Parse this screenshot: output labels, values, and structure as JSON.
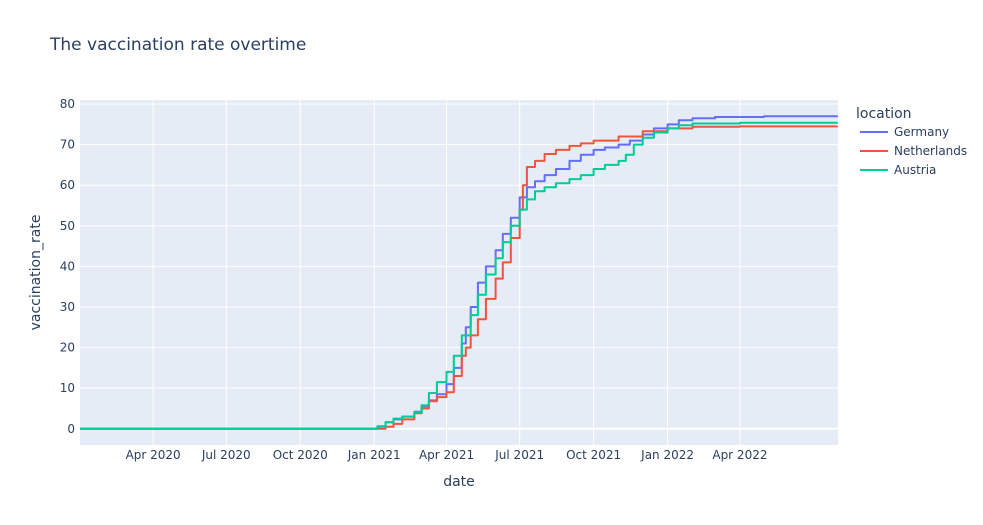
{
  "chart_data": {
    "type": "line",
    "title": "The vaccination rate overtime",
    "xlabel": "date",
    "ylabel": "vaccination_rate",
    "xlim": [
      "2020-01-01",
      "2022-08-01"
    ],
    "ylim": [
      -4,
      81
    ],
    "x_ticks": [
      {
        "date": "2020-04-01",
        "label": "Apr 2020"
      },
      {
        "date": "2020-07-01",
        "label": "Jul 2020"
      },
      {
        "date": "2020-10-01",
        "label": "Oct 2020"
      },
      {
        "date": "2021-01-01",
        "label": "Jan 2021"
      },
      {
        "date": "2021-04-01",
        "label": "Apr 2021"
      },
      {
        "date": "2021-07-01",
        "label": "Jul 2021"
      },
      {
        "date": "2021-10-01",
        "label": "Oct 2021"
      },
      {
        "date": "2022-01-01",
        "label": "Jan 2022"
      },
      {
        "date": "2022-04-01",
        "label": "Apr 2022"
      }
    ],
    "y_ticks": [
      0,
      10,
      20,
      30,
      40,
      50,
      60,
      70,
      80
    ],
    "grid": true,
    "legend": {
      "title": "location",
      "placement": "right"
    },
    "plot_bg": "#e5ecf6",
    "series": [
      {
        "name": "Germany",
        "color": "#636efa",
        "points": [
          [
            "2020-01-01",
            0
          ],
          [
            "2020-12-27",
            0
          ],
          [
            "2021-01-05",
            0.6
          ],
          [
            "2021-01-15",
            1.6
          ],
          [
            "2021-01-25",
            2.3
          ],
          [
            "2021-02-05",
            3.0
          ],
          [
            "2021-02-20",
            4.2
          ],
          [
            "2021-03-01",
            5.5
          ],
          [
            "2021-03-10",
            7.0
          ],
          [
            "2021-03-20",
            8.5
          ],
          [
            "2021-04-01",
            11.0
          ],
          [
            "2021-04-10",
            15.0
          ],
          [
            "2021-04-20",
            21.0
          ],
          [
            "2021-04-25",
            25.0
          ],
          [
            "2021-05-01",
            30.0
          ],
          [
            "2021-05-10",
            36.0
          ],
          [
            "2021-05-20",
            40.0
          ],
          [
            "2021-06-01",
            44.0
          ],
          [
            "2021-06-10",
            48.0
          ],
          [
            "2021-06-20",
            52.0
          ],
          [
            "2021-07-01",
            57.0
          ],
          [
            "2021-07-10",
            59.5
          ],
          [
            "2021-07-20",
            61.0
          ],
          [
            "2021-08-01",
            62.5
          ],
          [
            "2021-08-15",
            64.0
          ],
          [
            "2021-09-01",
            66.0
          ],
          [
            "2021-09-15",
            67.5
          ],
          [
            "2021-10-01",
            68.7
          ],
          [
            "2021-10-15",
            69.3
          ],
          [
            "2021-11-01",
            70.0
          ],
          [
            "2021-11-15",
            71.0
          ],
          [
            "2021-12-01",
            72.5
          ],
          [
            "2021-12-15",
            74.0
          ],
          [
            "2022-01-01",
            75.0
          ],
          [
            "2022-01-15",
            76.0
          ],
          [
            "2022-02-01",
            76.5
          ],
          [
            "2022-03-01",
            76.8
          ],
          [
            "2022-05-01",
            77.0
          ],
          [
            "2022-07-31",
            77.1
          ]
        ]
      },
      {
        "name": "Netherlands",
        "color": "#ef553b",
        "points": [
          [
            "2020-01-01",
            0
          ],
          [
            "2021-01-06",
            0
          ],
          [
            "2021-01-15",
            0.5
          ],
          [
            "2021-01-25",
            1.2
          ],
          [
            "2021-02-05",
            2.3
          ],
          [
            "2021-02-20",
            3.8
          ],
          [
            "2021-03-01",
            5.0
          ],
          [
            "2021-03-10",
            6.8
          ],
          [
            "2021-03-20",
            7.8
          ],
          [
            "2021-04-01",
            9.0
          ],
          [
            "2021-04-10",
            13.0
          ],
          [
            "2021-04-20",
            18.0
          ],
          [
            "2021-04-25",
            20.0
          ],
          [
            "2021-05-01",
            23.0
          ],
          [
            "2021-05-10",
            27.0
          ],
          [
            "2021-05-20",
            32.0
          ],
          [
            "2021-06-01",
            37.0
          ],
          [
            "2021-06-10",
            41.0
          ],
          [
            "2021-06-20",
            47.0
          ],
          [
            "2021-07-01",
            54.0
          ],
          [
            "2021-07-05",
            60.0
          ],
          [
            "2021-07-10",
            64.5
          ],
          [
            "2021-07-20",
            66.0
          ],
          [
            "2021-08-01",
            67.7
          ],
          [
            "2021-08-15",
            68.7
          ],
          [
            "2021-09-01",
            69.7
          ],
          [
            "2021-09-15",
            70.3
          ],
          [
            "2021-10-01",
            71.0
          ],
          [
            "2021-11-01",
            72.0
          ],
          [
            "2021-12-01",
            73.3
          ],
          [
            "2022-01-01",
            74.0
          ],
          [
            "2022-02-01",
            74.4
          ],
          [
            "2022-04-01",
            74.5
          ],
          [
            "2022-07-31",
            74.6
          ]
        ]
      },
      {
        "name": "Austria",
        "color": "#00cc96",
        "points": [
          [
            "2020-01-01",
            0
          ],
          [
            "2020-12-27",
            0
          ],
          [
            "2021-01-05",
            0.5
          ],
          [
            "2021-01-15",
            1.6
          ],
          [
            "2021-01-25",
            2.5
          ],
          [
            "2021-02-05",
            3.0
          ],
          [
            "2021-02-20",
            4.0
          ],
          [
            "2021-03-01",
            5.8
          ],
          [
            "2021-03-10",
            8.8
          ],
          [
            "2021-03-20",
            11.5
          ],
          [
            "2021-04-01",
            14.0
          ],
          [
            "2021-04-10",
            18.0
          ],
          [
            "2021-04-20",
            23.0
          ],
          [
            "2021-05-01",
            28.0
          ],
          [
            "2021-05-10",
            33.0
          ],
          [
            "2021-05-20",
            38.0
          ],
          [
            "2021-06-01",
            42.0
          ],
          [
            "2021-06-10",
            46.0
          ],
          [
            "2021-06-20",
            50.0
          ],
          [
            "2021-07-01",
            54.0
          ],
          [
            "2021-07-10",
            56.5
          ],
          [
            "2021-07-20",
            58.5
          ],
          [
            "2021-08-01",
            59.5
          ],
          [
            "2021-08-15",
            60.5
          ],
          [
            "2021-09-01",
            61.5
          ],
          [
            "2021-09-15",
            62.5
          ],
          [
            "2021-10-01",
            64.0
          ],
          [
            "2021-10-15",
            65.0
          ],
          [
            "2021-11-01",
            66.0
          ],
          [
            "2021-11-10",
            67.5
          ],
          [
            "2021-11-20",
            70.0
          ],
          [
            "2021-12-01",
            71.7
          ],
          [
            "2021-12-15",
            73.0
          ],
          [
            "2022-01-01",
            74.0
          ],
          [
            "2022-01-15",
            74.8
          ],
          [
            "2022-02-01",
            75.2
          ],
          [
            "2022-04-01",
            75.4
          ],
          [
            "2022-07-31",
            75.5
          ]
        ]
      }
    ]
  }
}
